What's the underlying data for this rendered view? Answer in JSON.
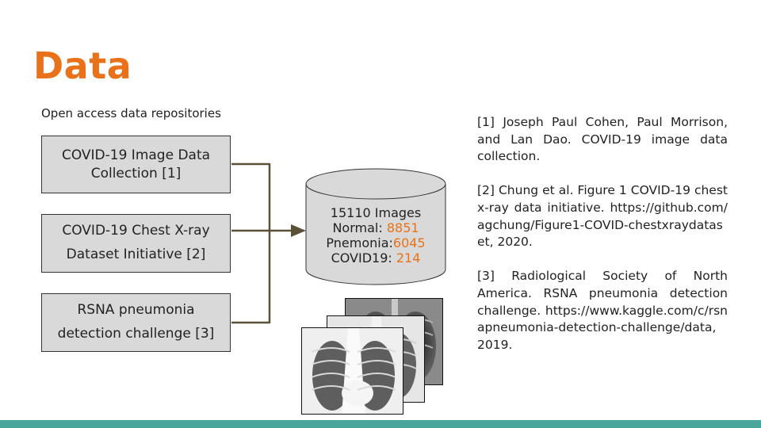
{
  "slide": {
    "title": "Data",
    "subtitle": "Open access data repositories"
  },
  "sources": [
    {
      "line1": "COVID-19 Image Data",
      "line2": "Collection [1]"
    },
    {
      "line1": "COVID-19 Chest X-ray",
      "line2": "Dataset Initiative [2]"
    },
    {
      "line1": "RSNA pneumonia",
      "line2": "detection challenge [3]"
    }
  ],
  "database": {
    "total": "15110 Images",
    "normal_label": "Normal: ",
    "normal_value": "8851",
    "pneumonia_label": "Pnemonia:",
    "pneumonia_value": "6045",
    "covid_label": "COVID19: ",
    "covid_value": "214"
  },
  "references": [
    {
      "text": "[1] Joseph Paul Cohen, Paul Morrison, and Lan Dao. COVID-19 image data collection.",
      "url": ""
    },
    {
      "text": "[2] Chung et al. Figure 1 COVID-19 chest x-ray data initiative.",
      "url": "https://github.com/agchung/Figure1-COVID-chestxraydataset, 2020."
    },
    {
      "text": "[3] Radiological Society of North America. RSNA pneumonia detection challenge.",
      "url": "https://www.kaggle.com/c/rsnapneumonia-detection-challenge/data, 2019."
    }
  ],
  "colors": {
    "accent": "#e8711a",
    "box_fill": "#d9d9d9",
    "connector": "#5b5138",
    "footer": "#4aa59a"
  }
}
